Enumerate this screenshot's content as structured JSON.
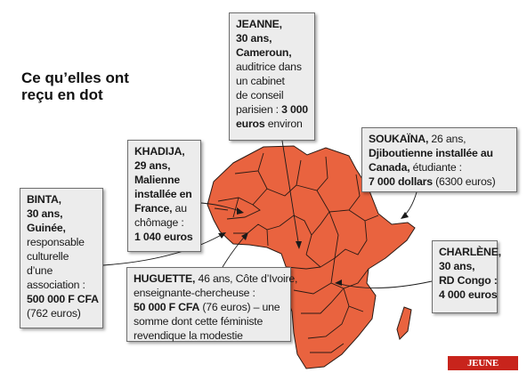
{
  "title": [
    "Ce qu’elles ont",
    "reçu en dot"
  ],
  "colors": {
    "africa": "#e9633f",
    "border": "#2a1a14",
    "box": "#ececec",
    "logo": "#c8241c"
  },
  "logo": "JEUNE AFRIQUE",
  "callouts": {
    "jeanne": [
      {
        "b": "JEANNE,"
      },
      {
        "b": "30 ans,"
      },
      {
        "b": "Cameroun,"
      },
      {
        "t": "auditrice dans"
      },
      {
        "t": "un cabinet"
      },
      {
        "t": "de conseil"
      },
      {
        "t": "parisien : ",
        "b2": "3 000"
      },
      {
        "b": "euros",
        "t2": " environ"
      }
    ],
    "soukaina": [
      {
        "b": "SOUKAÏNA,",
        "t2": " 26 ans,"
      },
      {
        "b": "Djiboutienne installée au"
      },
      {
        "b": "Canada,",
        "t2": " étudiante :"
      },
      {
        "b": "7 000 dollars",
        "t2": " (6300 euros)"
      }
    ],
    "khadija": [
      {
        "b": "KHADIJA,"
      },
      {
        "b": "29 ans,"
      },
      {
        "b": "Malienne"
      },
      {
        "b": "installée en"
      },
      {
        "b": "France,",
        "t2": " au"
      },
      {
        "t": "chômage :"
      },
      {
        "b": "1 040 euros"
      }
    ],
    "binta": [
      {
        "b": "BINTA,"
      },
      {
        "b": "30 ans,"
      },
      {
        "b": "Guinée,"
      },
      {
        "t": "responsable"
      },
      {
        "t": "culturelle"
      },
      {
        "t": "d’une"
      },
      {
        "t": "association :"
      },
      {
        "b": "500 000 F CFA"
      },
      {
        "t": "(762 euros)"
      }
    ],
    "charlene": [
      {
        "b": "CHARLÈNE,"
      },
      {
        "b": "30 ans,"
      },
      {
        "b": "RD Congo :"
      },
      {
        "b": "4 000 euros"
      }
    ],
    "huguette": [
      {
        "b": "HUGUETTE,",
        "t2": " 46 ans, Côte d’Ivoire,"
      },
      {
        "t": "enseignante-chercheuse :"
      },
      {
        "b": "50 000 F CFA",
        "t2": " (76 euros) – une"
      },
      {
        "t": "somme dont cette féministe"
      },
      {
        "t": "revendique la modestie"
      }
    ]
  }
}
